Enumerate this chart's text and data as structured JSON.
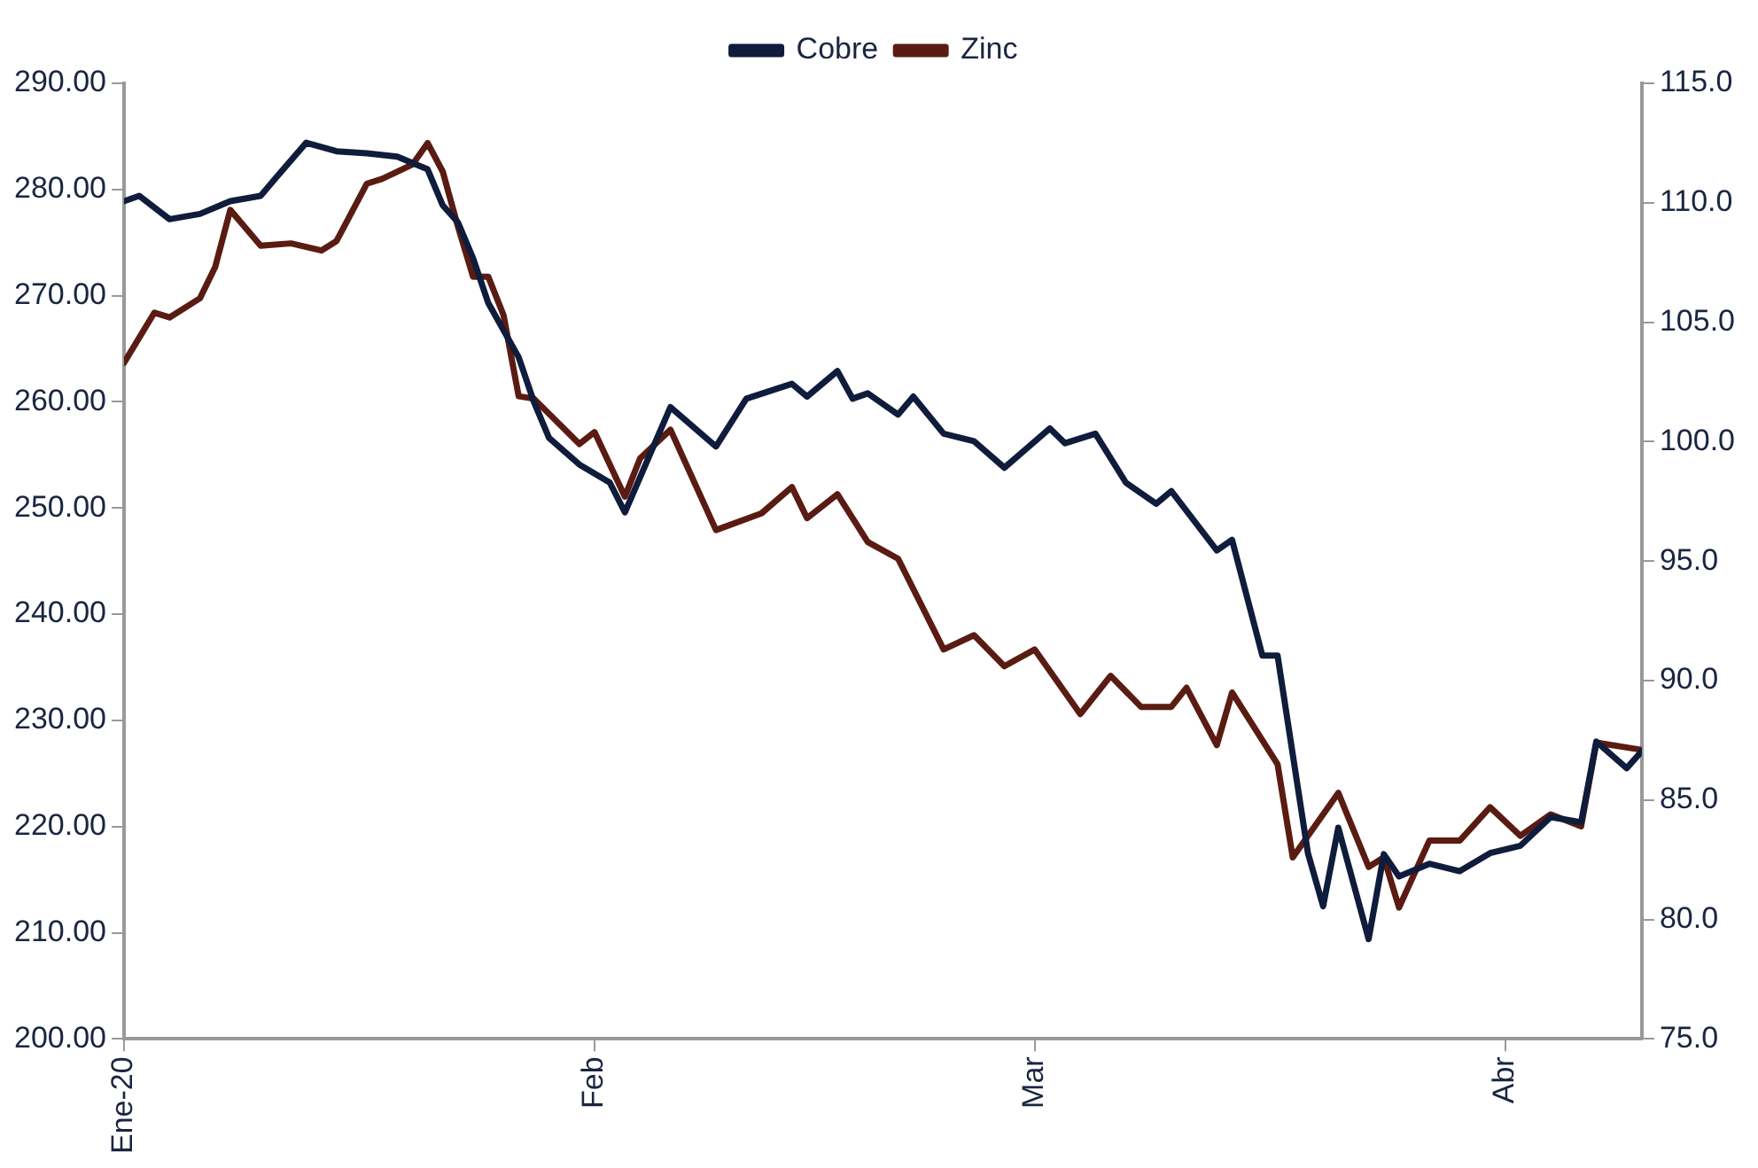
{
  "chart_data": {
    "type": "line",
    "legend": "top",
    "marker": "none",
    "line_style": "solid",
    "grid": false,
    "xlim": [
      "2020-01-01",
      "2020-04-10"
    ],
    "xticks": [
      {
        "value": "2020-01-01",
        "label": "Ene-20"
      },
      {
        "value": "2020-02-01",
        "label": "Feb"
      },
      {
        "value": "2020-03-01",
        "label": "Mar"
      },
      {
        "value": "2020-04-01",
        "label": "Abr"
      }
    ],
    "ylim": [
      200,
      290
    ],
    "yticks": [
      {
        "value": 200,
        "label": "200.00"
      },
      {
        "value": 210,
        "label": "210.00"
      },
      {
        "value": 220,
        "label": "220.00"
      },
      {
        "value": 230,
        "label": "230.00"
      },
      {
        "value": 240,
        "label": "240.00"
      },
      {
        "value": 250,
        "label": "250.00"
      },
      {
        "value": 260,
        "label": "260.00"
      },
      {
        "value": 270,
        "label": "270.00"
      },
      {
        "value": 280,
        "label": "280.00"
      },
      {
        "value": 290,
        "label": "290.00"
      }
    ],
    "y2lim": [
      75,
      115
    ],
    "y2ticks": [
      {
        "value": 75,
        "label": "75.0"
      },
      {
        "value": 80,
        "label": "80.0"
      },
      {
        "value": 85,
        "label": "85.0"
      },
      {
        "value": 90,
        "label": "90.0"
      },
      {
        "value": 95,
        "label": "95.0"
      },
      {
        "value": 100,
        "label": "100.0"
      },
      {
        "value": 105,
        "label": "105.0"
      },
      {
        "value": 110,
        "label": "110.0"
      },
      {
        "value": 115,
        "label": "115.0"
      }
    ],
    "series": [
      {
        "name": "Cobre",
        "color": "#0f1c3c",
        "x": [
          "2020-01-01",
          "2020-01-02",
          "2020-01-04",
          "2020-01-06",
          "2020-01-08",
          "2020-01-10",
          "2020-01-11",
          "2020-01-13",
          "2020-01-15",
          "2020-01-17",
          "2020-01-19",
          "2020-01-21",
          "2020-01-22",
          "2020-01-23",
          "2020-01-24",
          "2020-01-25",
          "2020-01-27",
          "2020-01-28",
          "2020-01-29",
          "2020-01-31",
          "2020-02-02",
          "2020-02-03",
          "2020-02-06",
          "2020-02-09",
          "2020-02-11",
          "2020-02-14",
          "2020-02-15",
          "2020-02-17",
          "2020-02-18",
          "2020-02-19",
          "2020-02-21",
          "2020-02-22",
          "2020-02-24",
          "2020-02-26",
          "2020-02-28",
          "2020-03-02",
          "2020-03-03",
          "2020-03-05",
          "2020-03-07",
          "2020-03-09",
          "2020-03-10",
          "2020-03-13",
          "2020-03-14",
          "2020-03-16",
          "2020-03-17",
          "2020-03-19",
          "2020-03-20",
          "2020-03-21",
          "2020-03-23",
          "2020-03-24",
          "2020-03-25",
          "2020-03-27",
          "2020-03-29",
          "2020-03-31",
          "2020-04-02",
          "2020-04-04",
          "2020-04-06",
          "2020-04-07",
          "2020-04-09",
          "2020-04-10"
        ],
        "values": [
          278.9,
          279.4,
          277.2,
          277.7,
          278.9,
          279.4,
          281.1,
          284.4,
          283.6,
          283.4,
          283.1,
          281.9,
          278.5,
          276.9,
          273.5,
          269.3,
          264.2,
          260.0,
          256.6,
          254.1,
          252.4,
          249.6,
          259.5,
          255.8,
          260.3,
          261.7,
          260.5,
          262.9,
          260.3,
          260.8,
          258.8,
          260.5,
          257.0,
          256.3,
          253.8,
          257.5,
          256.1,
          257.0,
          252.4,
          250.4,
          251.6,
          246.0,
          247.0,
          236.1,
          236.1,
          217.5,
          212.5,
          219.9,
          209.4,
          217.4,
          215.3,
          216.5,
          215.8,
          217.5,
          218.2,
          220.9,
          220.4,
          228.0,
          225.5,
          227.1
        ]
      },
      {
        "name": "Zinc",
        "color": "#5a1c12",
        "axis": "y2",
        "x": [
          "2020-01-01",
          "2020-01-03",
          "2020-01-04",
          "2020-01-06",
          "2020-01-07",
          "2020-01-08",
          "2020-01-10",
          "2020-01-12",
          "2020-01-14",
          "2020-01-15",
          "2020-01-17",
          "2020-01-18",
          "2020-01-20",
          "2020-01-21",
          "2020-01-22",
          "2020-01-23",
          "2020-01-24",
          "2020-01-25",
          "2020-01-26",
          "2020-01-27",
          "2020-01-28",
          "2020-01-31",
          "2020-02-01",
          "2020-02-03",
          "2020-02-04",
          "2020-02-06",
          "2020-02-09",
          "2020-02-12",
          "2020-02-14",
          "2020-02-15",
          "2020-02-17",
          "2020-02-19",
          "2020-02-21",
          "2020-02-24",
          "2020-02-26",
          "2020-02-28",
          "2020-03-01",
          "2020-03-04",
          "2020-03-06",
          "2020-03-08",
          "2020-03-10",
          "2020-03-11",
          "2020-03-13",
          "2020-03-14",
          "2020-03-17",
          "2020-03-18",
          "2020-03-21",
          "2020-03-23",
          "2020-03-24",
          "2020-03-25",
          "2020-03-27",
          "2020-03-29",
          "2020-03-31",
          "2020-04-02",
          "2020-04-04",
          "2020-04-06",
          "2020-04-07",
          "2020-04-10"
        ],
        "values": [
          103.3,
          105.4,
          105.2,
          106.0,
          107.3,
          109.7,
          108.2,
          108.3,
          108.0,
          108.4,
          110.8,
          111.0,
          111.6,
          112.5,
          111.3,
          109.0,
          106.9,
          106.9,
          105.3,
          101.9,
          101.8,
          99.9,
          100.4,
          97.7,
          99.3,
          100.5,
          96.3,
          97.0,
          98.1,
          96.8,
          97.8,
          95.8,
          95.1,
          91.3,
          91.9,
          90.6,
          91.3,
          88.6,
          90.2,
          88.9,
          88.9,
          89.7,
          87.3,
          89.5,
          86.5,
          82.6,
          85.3,
          82.2,
          82.6,
          80.5,
          83.3,
          83.3,
          84.7,
          83.5,
          84.4,
          83.9,
          87.4,
          87.1
        ]
      }
    ]
  }
}
